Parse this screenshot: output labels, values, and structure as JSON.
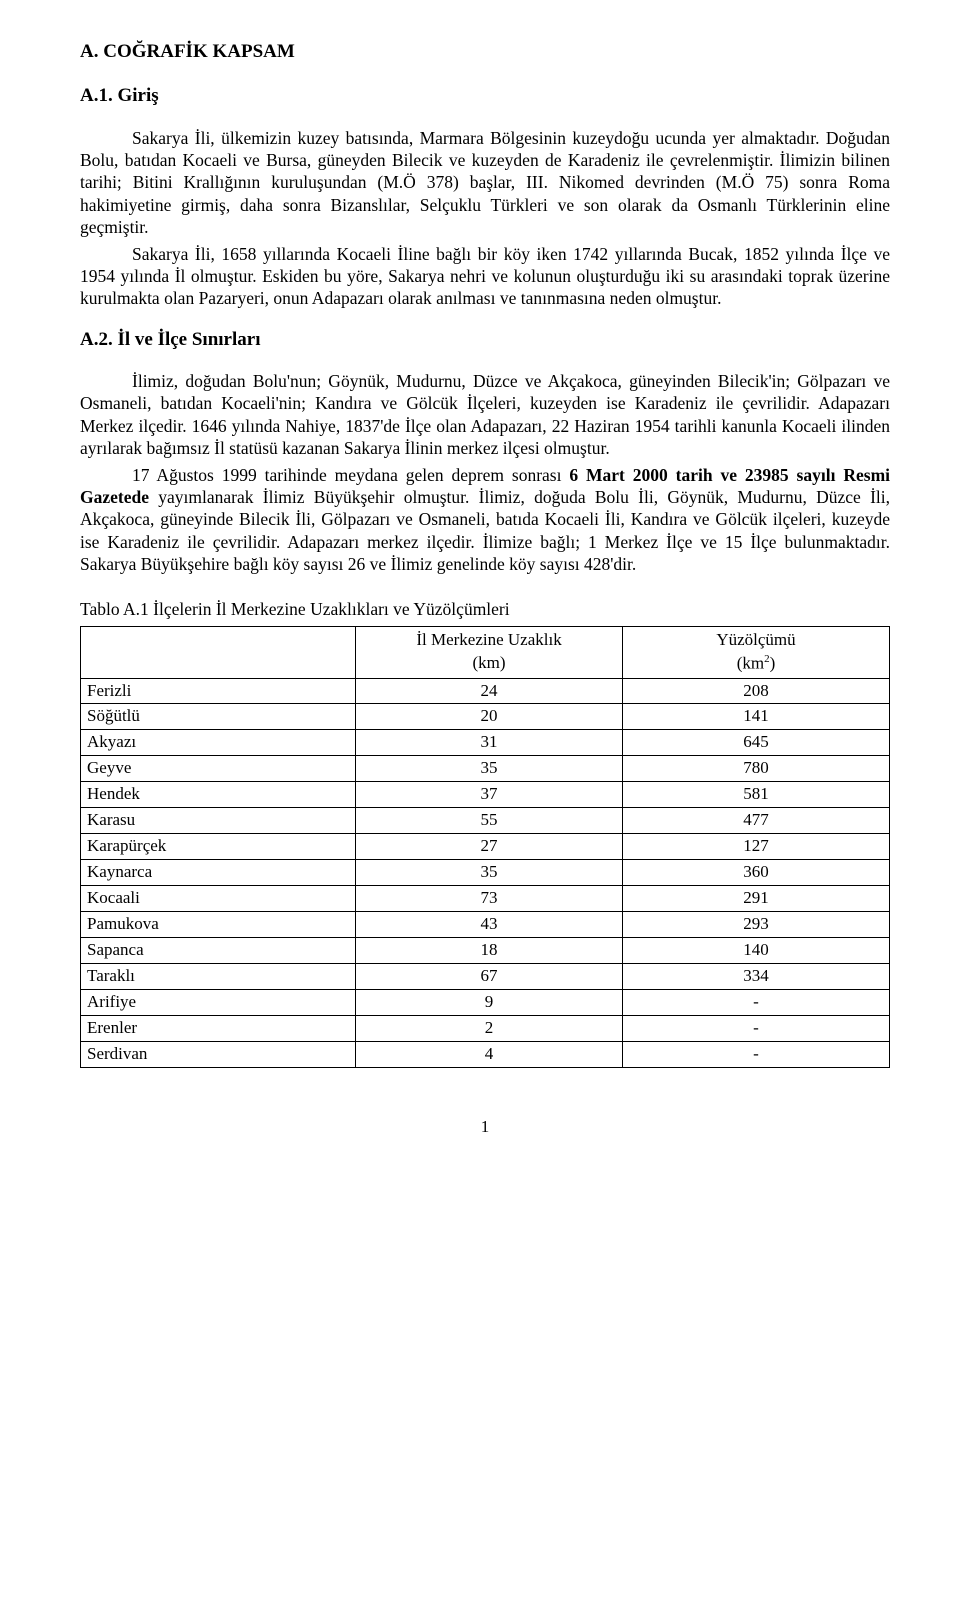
{
  "heading_main": "A. COĞRAFİK KAPSAM",
  "heading_a1": "A.1. Giriş",
  "p1": "Sakarya İli, ülkemizin kuzey batısında, Marmara Bölgesinin kuzeydoğu ucunda yer almaktadır. Doğudan Bolu, batıdan Kocaeli ve Bursa, güneyden Bilecik ve kuzeyden de Karadeniz ile çevrelenmiştir. İlimizin bilinen tarihi; Bitini Krallığının kuruluşundan (M.Ö 378) başlar, III. Nikomed devrinden (M.Ö 75) sonra Roma hakimiyetine girmiş, daha sonra Bizanslılar, Selçuklu Türkleri ve son olarak da  Osmanlı Türklerinin eline geçmiştir.",
  "p2": "Sakarya İli, 1658 yıllarında Kocaeli İline bağlı bir köy iken 1742 yıllarında Bucak, 1852 yılında İlçe ve 1954 yılında İl olmuştur. Eskiden bu yöre, Sakarya nehri ve kolunun oluşturduğu  iki su arasındaki toprak üzerine kurulmakta olan Pazaryeri, onun Adapazarı olarak anılması ve tanınmasına neden olmuştur.",
  "heading_a2": "A.2. İl ve İlçe Sınırları",
  "p3": "İlimiz, doğudan Bolu'nun; Göynük, Mudurnu, Düzce ve Akçakoca, güneyinden Bilecik'in; Gölpazarı ve Osmaneli, batıdan Kocaeli'nin; Kandıra ve Gölcük İlçeleri, kuzeyden ise Karadeniz ile çevrilidir. Adapazarı Merkez ilçedir. 1646 yılında Nahiye, 1837'de İlçe olan Adapazarı, 22 Haziran 1954 tarihli kanunla Kocaeli ilinden ayrılarak bağımsız  İl statüsü kazanan Sakarya  İlinin merkez ilçesi olmuştur.",
  "p4_a": "17 Ağustos 1999 tarihinde meydana gelen deprem sonrası ",
  "p4_b_bold": "6 Mart 2000 tarih ve 23985 sayılı Resmi Gazetede",
  "p4_c": " yayımlanarak İlimiz Büyükşehir olmuştur. İlimiz, doğuda Bolu İli, Göynük, Mudurnu, Düzce İli, Akçakoca, güneyinde  Bilecik İli, Gölpazarı ve Osmaneli, batıda Kocaeli İli, Kandıra ve Gölcük ilçeleri, kuzeyde ise Karadeniz ile çevrilidir. Adapazarı merkez ilçedir. İlimize bağlı; 1 Merkez İlçe ve 15 İlçe bulunmaktadır.  Sakarya Büyükşehire bağlı köy sayısı 26 ve İlimiz genelinde köy sayısı 428'dir.",
  "table_caption": "Tablo A.1 İlçelerin İl Merkezine Uzaklıkları ve Yüzölçümleri",
  "table": {
    "headers": {
      "dist_l1": "İl Merkezine Uzaklık",
      "dist_l2": "(km)",
      "area_l1": "Yüzölçümü",
      "area_l2_pre": "(km",
      "area_l2_sup": "2",
      "area_l2_post": ")"
    },
    "rows": [
      {
        "name": "Ferizli",
        "dist": "24",
        "area": "208"
      },
      {
        "name": "Söğütlü",
        "dist": "20",
        "area": "141"
      },
      {
        "name": "Akyazı",
        "dist": "31",
        "area": "645"
      },
      {
        "name": "Geyve",
        "dist": "35",
        "area": "780"
      },
      {
        "name": "Hendek",
        "dist": "37",
        "area": "581"
      },
      {
        "name": "Karasu",
        "dist": "55",
        "area": "477"
      },
      {
        "name": "Karapürçek",
        "dist": "27",
        "area": "127"
      },
      {
        "name": "Kaynarca",
        "dist": "35",
        "area": "360"
      },
      {
        "name": "Kocaali",
        "dist": "73",
        "area": "291"
      },
      {
        "name": "Pamukova",
        "dist": "43",
        "area": "293"
      },
      {
        "name": "Sapanca",
        "dist": "18",
        "area": "140"
      },
      {
        "name": "Taraklı",
        "dist": "67",
        "area": "334"
      },
      {
        "name": "Arifiye",
        "dist": "9",
        "area": "-"
      },
      {
        "name": "Erenler",
        "dist": "2",
        "area": "-"
      },
      {
        "name": "Serdivan",
        "dist": "4",
        "area": "-"
      }
    ]
  },
  "page_number": "1"
}
